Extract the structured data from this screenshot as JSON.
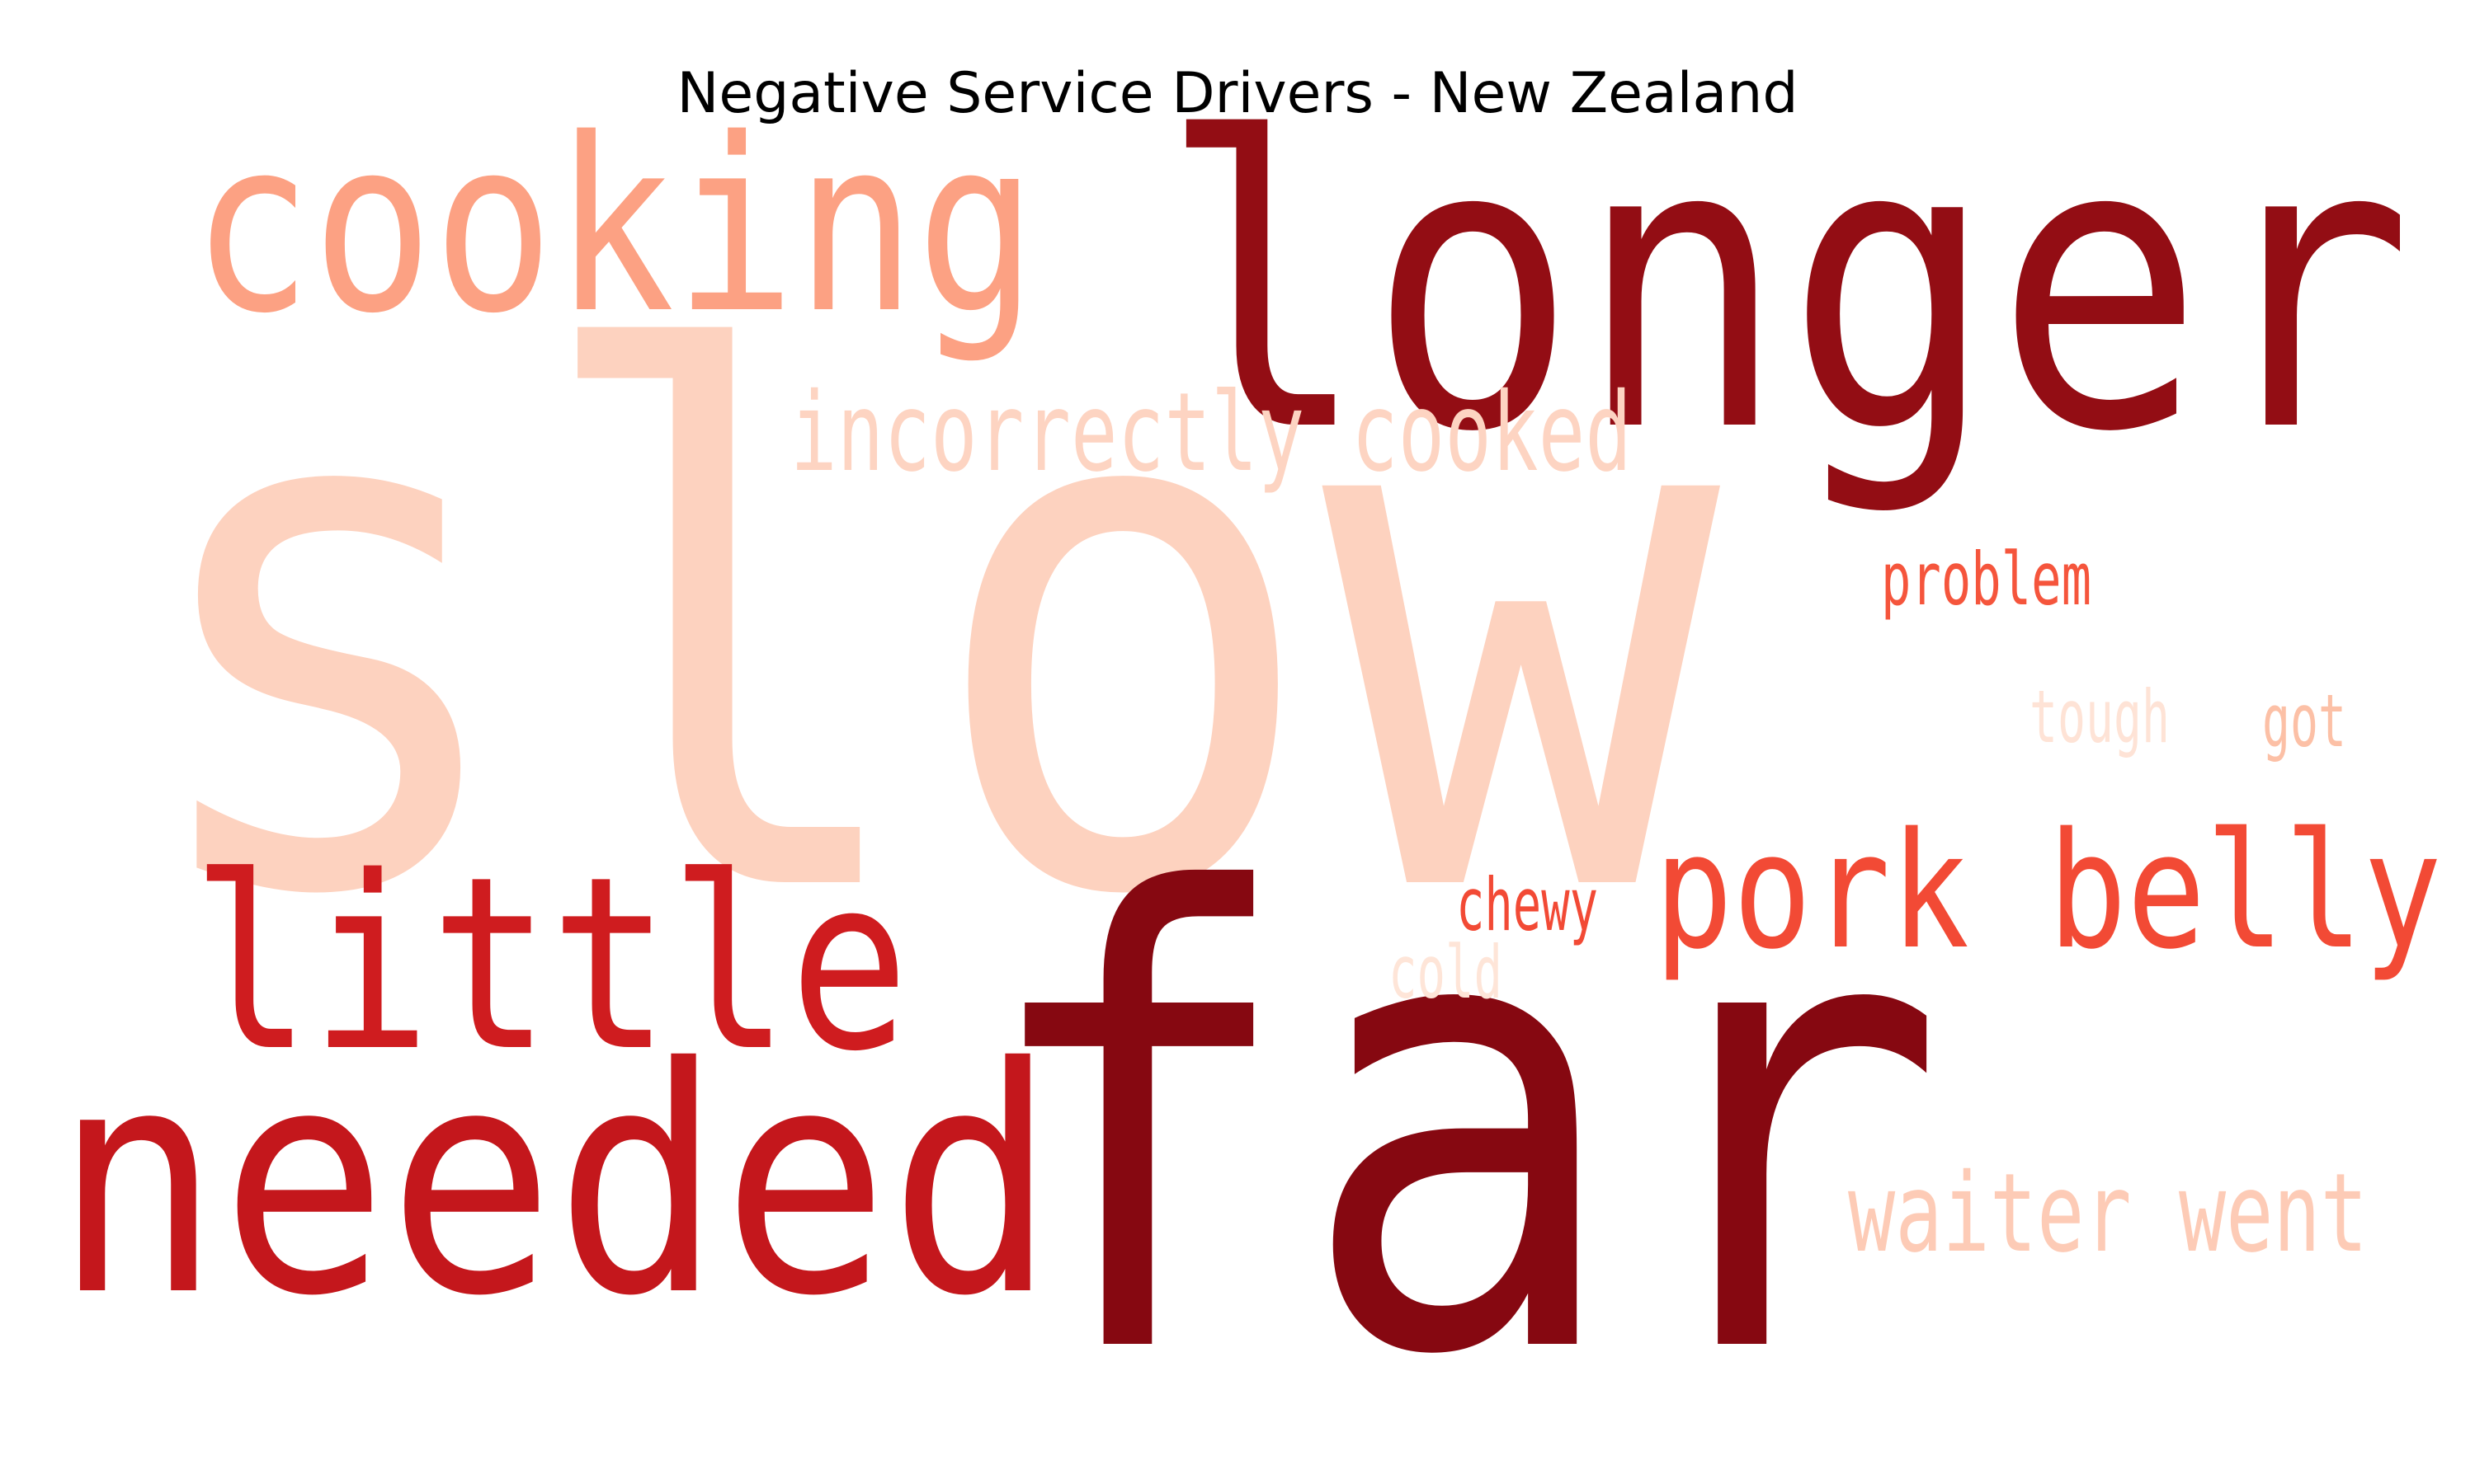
{
  "chart_data": {
    "type": "wordcloud",
    "title": "Negative Service Drivers - New Zealand",
    "colormap": "Reds",
    "words": [
      {
        "text": "slow",
        "weight": 1.0,
        "color": "#fdd2bf"
      },
      {
        "text": "far",
        "weight": 0.86,
        "color": "#860811"
      },
      {
        "text": "longer",
        "weight": 0.55,
        "color": "#930d14"
      },
      {
        "text": "needed",
        "weight": 0.43,
        "color": "#c4171c"
      },
      {
        "text": "cooking",
        "weight": 0.33,
        "color": "#fca183"
      },
      {
        "text": "little",
        "weight": 0.33,
        "color": "#cf1c1f"
      },
      {
        "text": "pork belly",
        "weight": 0.22,
        "color": "#f24a35"
      },
      {
        "text": "incorrectly cooked",
        "weight": 0.15,
        "color": "#fdd4c2"
      },
      {
        "text": "waiter went",
        "weight": 0.15,
        "color": "#fdcbb6"
      },
      {
        "text": "problem",
        "weight": 0.1,
        "color": "#f5553c"
      },
      {
        "text": "chewy",
        "weight": 0.1,
        "color": "#f24a35"
      },
      {
        "text": "tough",
        "weight": 0.1,
        "color": "#fee3d6"
      },
      {
        "text": "got",
        "weight": 0.1,
        "color": "#fcc0a6"
      },
      {
        "text": "cold",
        "weight": 0.1,
        "color": "#fee5d8"
      }
    ]
  }
}
